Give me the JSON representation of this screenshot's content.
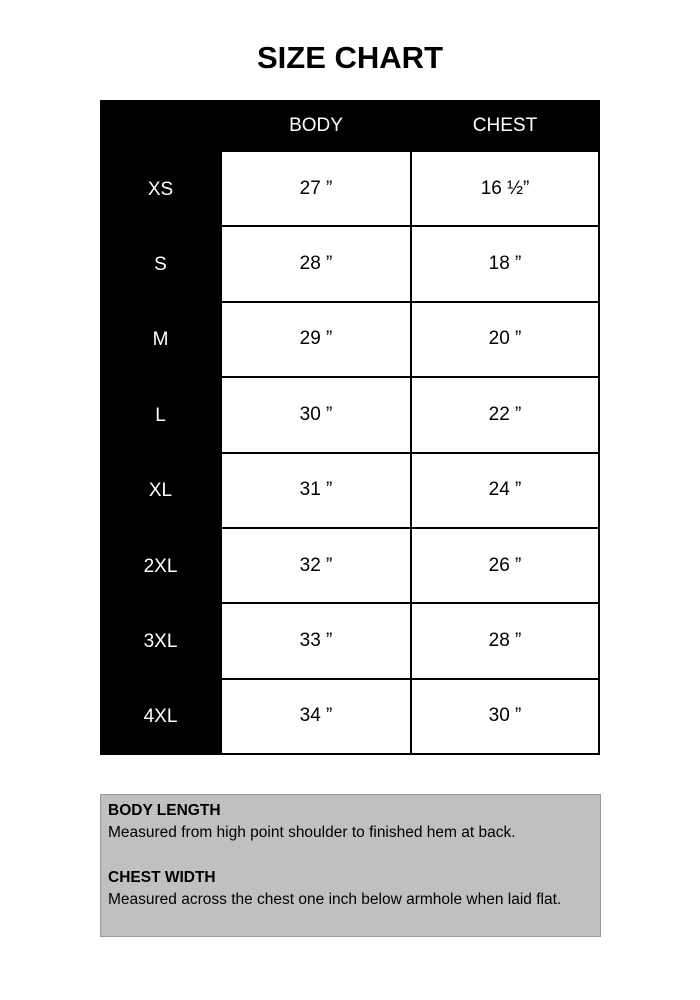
{
  "title": "SIZE CHART",
  "table": {
    "headers": [
      "BODY",
      "CHEST"
    ],
    "rows": [
      {
        "size": "XS",
        "body": "27 ”",
        "chest": "16 ½”"
      },
      {
        "size": "S",
        "body": "28 ”",
        "chest": "18 ”"
      },
      {
        "size": "M",
        "body": "29 ”",
        "chest": "20 ”"
      },
      {
        "size": "L",
        "body": "30 ”",
        "chest": "22 ”"
      },
      {
        "size": "XL",
        "body": "31 ”",
        "chest": "24 ”"
      },
      {
        "size": "2XL",
        "body": "32 ”",
        "chest": "26 ”"
      },
      {
        "size": "3XL",
        "body": "33 ”",
        "chest": "28 ”"
      },
      {
        "size": "4XL",
        "body": "34 ”",
        "chest": "30 ”"
      }
    ]
  },
  "notes": {
    "body_heading": "BODY LENGTH",
    "body_text": "Measured from high point shoulder to finished hem at back.",
    "chest_heading": "CHEST WIDTH",
    "chest_text": "Measured across the chest one inch below armhole when laid flat."
  }
}
